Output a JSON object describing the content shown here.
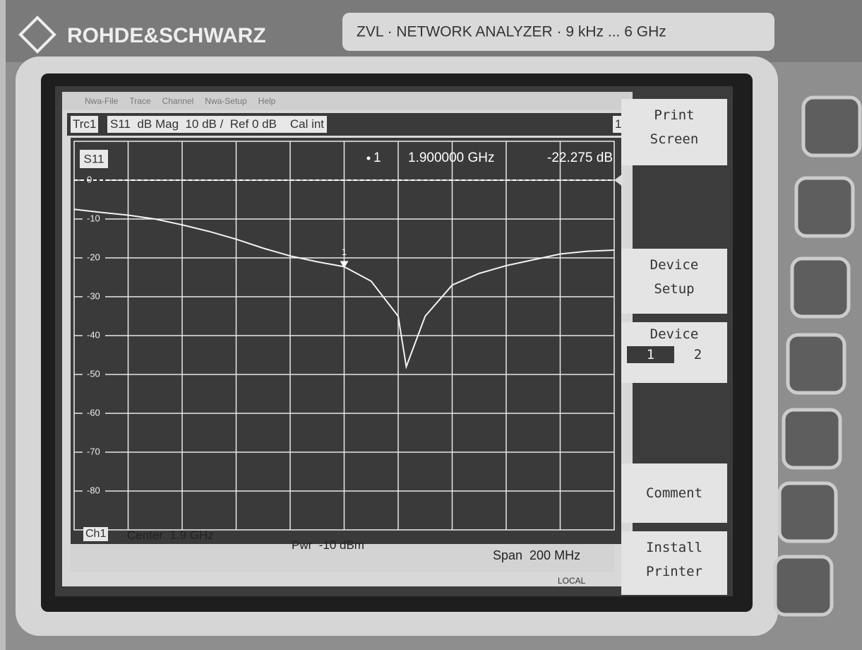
{
  "header": {
    "brand": "ROHDE&SCHWARZ",
    "model": "ZVL · NETWORK ANALYZER · 9 kHz ... 6 GHz"
  },
  "menu": [
    "Nwa-File",
    "Trace",
    "Channel",
    "Nwa-Setup",
    "Help"
  ],
  "trace_bar": {
    "trace": "Trc1",
    "setup": "S11  dB Mag  10 dB /  Ref 0 dB",
    "cal": "Cal int",
    "channel_no": "1"
  },
  "chart_data": {
    "type": "line",
    "series_label": "S11",
    "x": [
      1.8,
      1.81,
      1.82,
      1.83,
      1.84,
      1.85,
      1.86,
      1.87,
      1.88,
      1.89,
      1.9,
      1.91,
      1.92,
      1.923,
      1.93,
      1.94,
      1.95,
      1.96,
      1.97,
      1.98,
      1.99,
      2.0
    ],
    "series": [
      {
        "name": "S11",
        "color": "#f2f2f2",
        "values": [
          -7.5,
          -8.3,
          -9.0,
          -10.0,
          -11.5,
          -13.2,
          -15.2,
          -17.5,
          -19.5,
          -21.0,
          -22.275,
          -26.0,
          -35.0,
          -48.0,
          -35.0,
          -27.0,
          -24.0,
          -22.0,
          -20.5,
          -19.0,
          -18.3,
          -18.0
        ]
      }
    ],
    "xlim": [
      1.8,
      2.0
    ],
    "ylim": [
      -90,
      10
    ],
    "yticks": [
      0,
      -10,
      -20,
      -30,
      -40,
      -50,
      -60,
      -70,
      -80
    ],
    "ref_level": 0,
    "grid": true,
    "marker": {
      "label": "1",
      "frequency": "1.900000 GHz",
      "level": "-22.275 dB"
    }
  },
  "status_bar": {
    "channel": "Ch1",
    "center": "Center  1.9 GHz",
    "power": "Pwr  -10 dBm",
    "span": "Span  200 MHz",
    "mode": "LOCAL"
  },
  "softkeys": [
    {
      "label": "Print Screen"
    },
    {
      "label": "Device Setup"
    },
    {
      "label": "Device",
      "options": [
        "1",
        "2"
      ]
    },
    {
      "label": "Comment"
    },
    {
      "label": "Install Printer"
    }
  ]
}
